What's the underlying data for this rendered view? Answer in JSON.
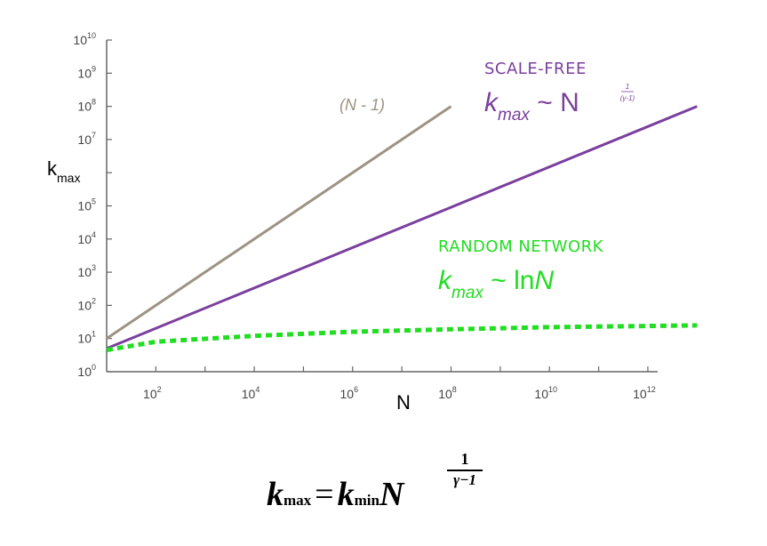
{
  "chart_data": {
    "type": "line",
    "title": "",
    "xlabel": "N",
    "ylabel": "k",
    "ylabel_sub": "max",
    "x_log_range": [
      1,
      12.2
    ],
    "y_log_range": [
      0,
      10
    ],
    "x_ticks": [
      {
        "base": "10",
        "exp": "2",
        "value": 2
      },
      {
        "base": "10",
        "exp": "4",
        "value": 4
      },
      {
        "base": "10",
        "exp": "6",
        "value": 6
      },
      {
        "base": "10",
        "exp": "8",
        "value": 8
      },
      {
        "base": "10",
        "exp": "10",
        "value": 10
      },
      {
        "base": "10",
        "exp": "12",
        "value": 12
      }
    ],
    "y_ticks": [
      {
        "base": "10",
        "exp": "10",
        "value": 10
      },
      {
        "base": "10",
        "exp": "9",
        "value": 9
      },
      {
        "base": "10",
        "exp": "8",
        "value": 8
      },
      {
        "base": "10",
        "exp": "7",
        "value": 7
      },
      {
        "base": "10",
        "exp": "5",
        "value": 5
      },
      {
        "base": "10",
        "exp": "4",
        "value": 4
      },
      {
        "base": "10",
        "exp": "3",
        "value": 3
      },
      {
        "base": "10",
        "exp": "2",
        "value": 2
      },
      {
        "base": "10",
        "exp": "1",
        "value": 1
      },
      {
        "base": "10",
        "exp": "0",
        "value": 0
      }
    ],
    "series": [
      {
        "key": "linear",
        "color": "#9c9383",
        "style": "solid",
        "x": [
          10,
          100000000
        ],
        "y": [
          10,
          100000000
        ]
      },
      {
        "key": "scalefree",
        "color": "#7b3f9e",
        "style": "solid",
        "x": [
          10,
          10000000000000
        ],
        "y": [
          5,
          100000000
        ]
      },
      {
        "key": "random",
        "color": "#22dd22",
        "style": "dashed",
        "x": [
          10,
          100,
          10000,
          1000000,
          100000000,
          10000000000,
          10000000000000
        ],
        "y": [
          4.5,
          8,
          12,
          16,
          19,
          22,
          25
        ]
      }
    ],
    "grid": false,
    "legend": "none"
  },
  "annotations": {
    "linear_label": "(N - 1)",
    "scalefree_title": "SCALE-FREE",
    "scalefree_k": "k",
    "scalefree_sub": "max",
    "scalefree_tilde": " ~ N",
    "scalefree_exp_num": "1",
    "scalefree_exp_den": "(γ-1)",
    "random_title": "RANDOM NETWORK",
    "random_k": "k",
    "random_sub": "max",
    "random_tilde": " ~ ln",
    "random_N": "N"
  },
  "formula": {
    "k": "k",
    "sub_max": "max",
    "eq": "=",
    "k2": "k",
    "sub_min": "min",
    "N": "N",
    "exp_num": "1",
    "exp_den": "γ−1"
  },
  "colors": {
    "axis": "#666666",
    "linear": "#9c9383",
    "scalefree": "#7b3f9e",
    "random": "#22dd22"
  }
}
